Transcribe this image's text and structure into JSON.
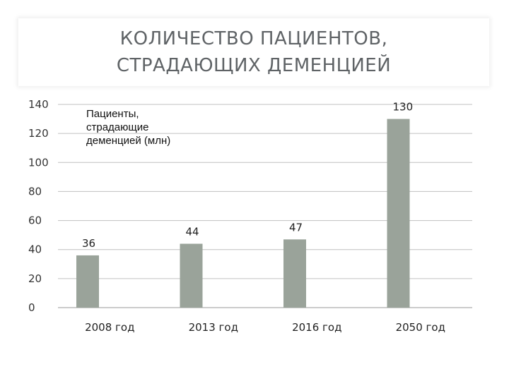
{
  "title": {
    "lines": [
      "КОЛИЧЕСТВО ПАЦИЕНТОВ,",
      "СТРАДАЮЩИХ ДЕМЕНЦИЕЙ"
    ]
  },
  "colors": {
    "bar": "#9aa39a",
    "grid": "#c0c0c0",
    "axis": "#999999",
    "title": "#5f6366"
  },
  "chart_data": {
    "type": "bar",
    "title": "КОЛИЧЕСТВО ПАЦИЕНТОВ, СТРАДАЮЩИХ ДЕМЕНЦИЕЙ",
    "categories": [
      "2008 год",
      "2013 год",
      "2016 год",
      "2050 год"
    ],
    "series": [
      {
        "name": "Пациенты, страдающие деменцией (млн)",
        "name_lines": [
          "Пациенты,",
          "страдающие",
          "деменцией (млн)"
        ],
        "values": [
          36,
          44,
          47,
          130
        ]
      }
    ],
    "data_labels": [
      "36",
      "44",
      "47",
      "130"
    ],
    "ylim": [
      0,
      140
    ],
    "yticks": [
      0,
      20,
      40,
      60,
      80,
      100,
      120,
      140
    ],
    "ytick_labels": [
      "0",
      "20",
      "40",
      "60",
      "80",
      "100",
      "120",
      "140"
    ],
    "grid": true,
    "legend": "inside top-left",
    "xlabel": "",
    "ylabel": ""
  }
}
